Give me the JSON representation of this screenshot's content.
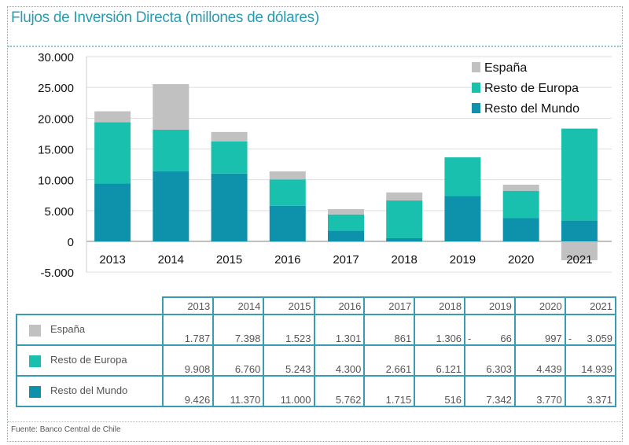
{
  "title": "Flujos de Inversión Directa (millones de dólares)",
  "source": "Fuente: Banco Central de Chile",
  "chart_data": {
    "type": "bar",
    "stacked": true,
    "categories": [
      "2013",
      "2014",
      "2015",
      "2016",
      "2017",
      "2018",
      "2019",
      "2020",
      "2021"
    ],
    "ylim": [
      -5000,
      30000
    ],
    "yticks": [
      -5000,
      0,
      5000,
      10000,
      15000,
      20000,
      25000,
      30000
    ],
    "ytick_labels": [
      "-5.000",
      "0",
      "5.000",
      "10.000",
      "15.000",
      "20.000",
      "25.000",
      "30.000"
    ],
    "grid": true,
    "legend": "top-right",
    "series": [
      {
        "name": "Resto del Mundo",
        "color": "#0e92ac",
        "values": [
          9426,
          11370,
          11000,
          5762,
          1715,
          516,
          7342,
          3770,
          3371
        ]
      },
      {
        "name": "Resto de Europa",
        "color": "#19c0ae",
        "values": [
          9908,
          6760,
          5243,
          4300,
          2661,
          6121,
          6303,
          4439,
          14939
        ]
      },
      {
        "name": "España",
        "color": "#c1c1c1",
        "values": [
          1787,
          7398,
          1523,
          1301,
          861,
          1306,
          -66,
          997,
          -3059
        ]
      }
    ]
  },
  "table": {
    "years": [
      "2013",
      "2014",
      "2015",
      "2016",
      "2017",
      "2018",
      "2019",
      "2020",
      "2021"
    ],
    "rows": [
      {
        "label": "España",
        "color": "#c1c1c1",
        "cells": [
          "1.787",
          "7.398",
          "1.523",
          "1.301",
          "861",
          "1.306",
          "- 66",
          "997",
          "- 3.059"
        ]
      },
      {
        "label": "Resto de Europa",
        "color": "#19c0ae",
        "cells": [
          "9.908",
          "6.760",
          "5.243",
          "4.300",
          "2.661",
          "6.121",
          "6.303",
          "4.439",
          "14.939"
        ]
      },
      {
        "label": "Resto del Mundo",
        "color": "#0e92ac",
        "cells": [
          "9.426",
          "11.370",
          "11.000",
          "5.762",
          "1.715",
          "516",
          "7.342",
          "3.770",
          "3.371"
        ]
      }
    ]
  }
}
